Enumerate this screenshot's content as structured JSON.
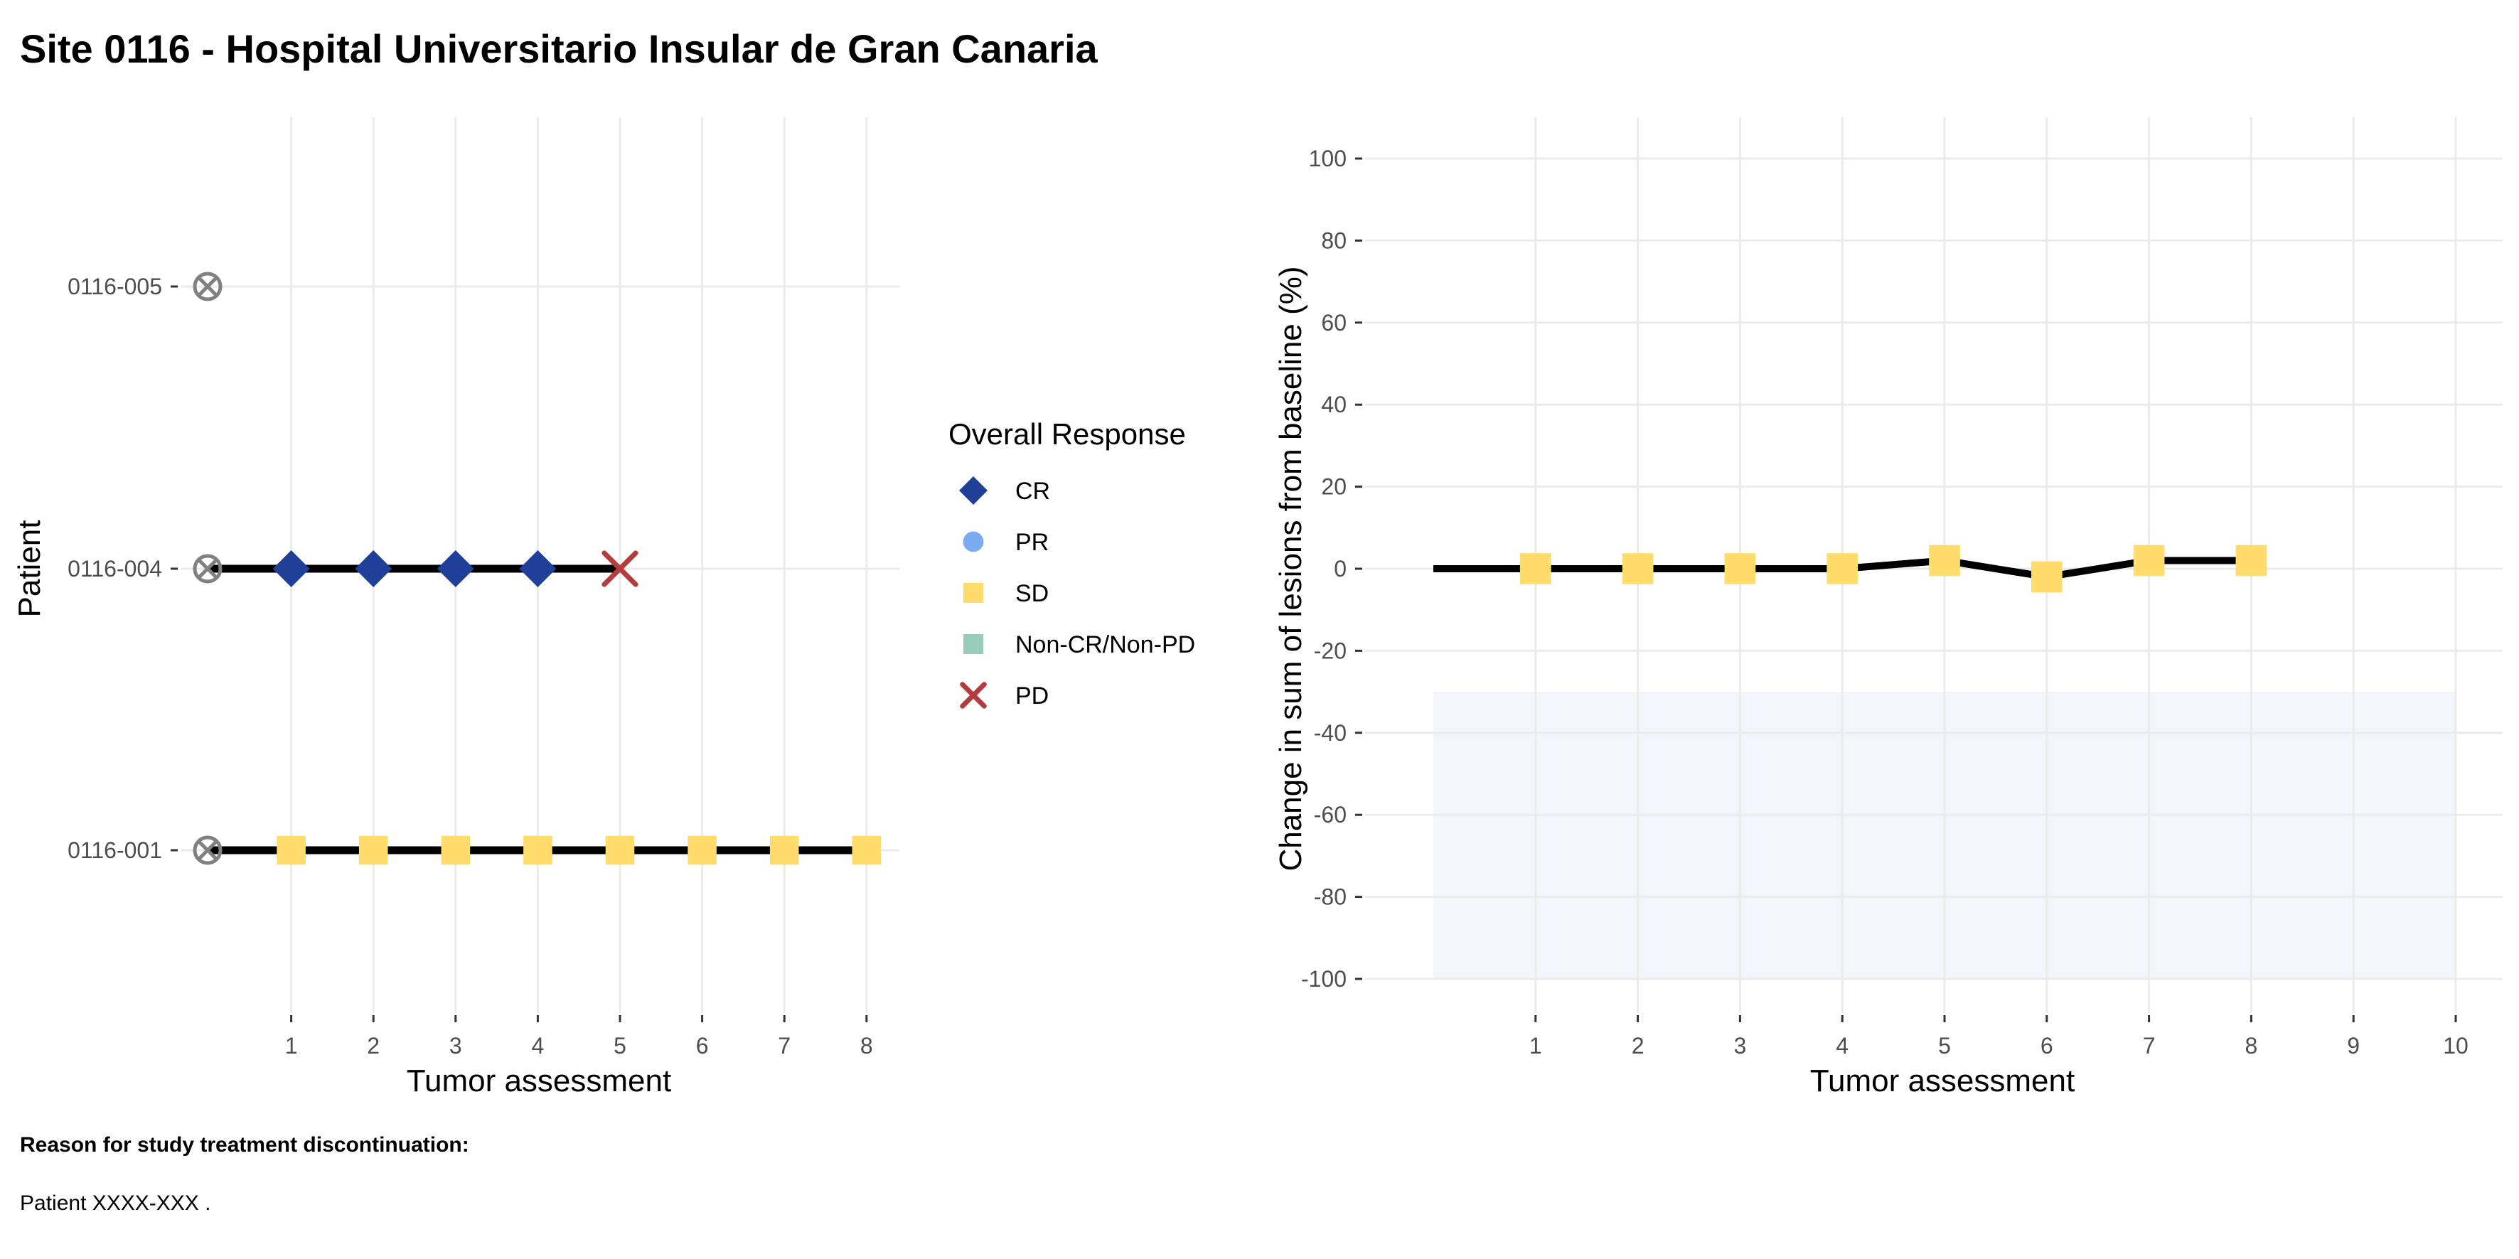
{
  "chart_data": [
    {
      "type": "scatter",
      "title": "Site 0116 - Hospital Universitario Insular de Gran Canaria",
      "xlabel": "Tumor assessment",
      "ylabel": "Patient",
      "x_ticks": [
        1,
        2,
        3,
        4,
        5,
        6,
        7,
        8
      ],
      "xlim": [
        0,
        8
      ],
      "categories": [
        "0116-001",
        "0116-004",
        "0116-005"
      ],
      "grid": true,
      "legend": {
        "title": "Overall Response",
        "placement": "right",
        "entries": [
          {
            "label": "CR",
            "shape": "diamond",
            "color": "#1f3f99"
          },
          {
            "label": "PR",
            "shape": "circle",
            "color": "#7aaaf0"
          },
          {
            "label": "SD",
            "shape": "square",
            "color": "#ffdc6b"
          },
          {
            "label": "Non-CR/Non-PD",
            "shape": "square",
            "color": "#99ccb8"
          },
          {
            "label": "PD",
            "shape": "cross",
            "color": "#b33d3d"
          }
        ]
      },
      "patients": [
        {
          "id": "0116-001",
          "last": 8,
          "responses": [
            "SD",
            "SD",
            "SD",
            "SD",
            "SD",
            "SD",
            "SD",
            "SD"
          ]
        },
        {
          "id": "0116-004",
          "last": 5,
          "responses": [
            "CR",
            "CR",
            "CR",
            "CR",
            "PD"
          ]
        },
        {
          "id": "0116-005",
          "last": 0,
          "responses": []
        }
      ]
    },
    {
      "type": "line",
      "xlabel": "Tumor assessment",
      "ylabel": "Change in sum of lesions from baseline (%)",
      "x_ticks": [
        1,
        2,
        3,
        4,
        5,
        6,
        7,
        8,
        9,
        10
      ],
      "xlim": [
        0,
        10
      ],
      "y_ticks": [
        100,
        80,
        60,
        40,
        20,
        0,
        -20,
        -40,
        -60,
        -80,
        -100
      ],
      "ylim": [
        -100,
        100
      ],
      "response_band": [
        -100,
        -30
      ],
      "grid": true,
      "series": [
        {
          "x": [
            0,
            1,
            2,
            3,
            4,
            5,
            6,
            7,
            8
          ],
          "y": [
            0,
            0,
            0,
            0,
            0,
            2,
            -2,
            2,
            2
          ],
          "responses": [
            "",
            "SD",
            "SD",
            "SD",
            "SD",
            "SD",
            "SD",
            "SD",
            "SD"
          ]
        }
      ]
    }
  ],
  "footnote": {
    "heading": "Reason for study treatment discontinuation:",
    "text": "Patient XXXX-XXX ."
  }
}
